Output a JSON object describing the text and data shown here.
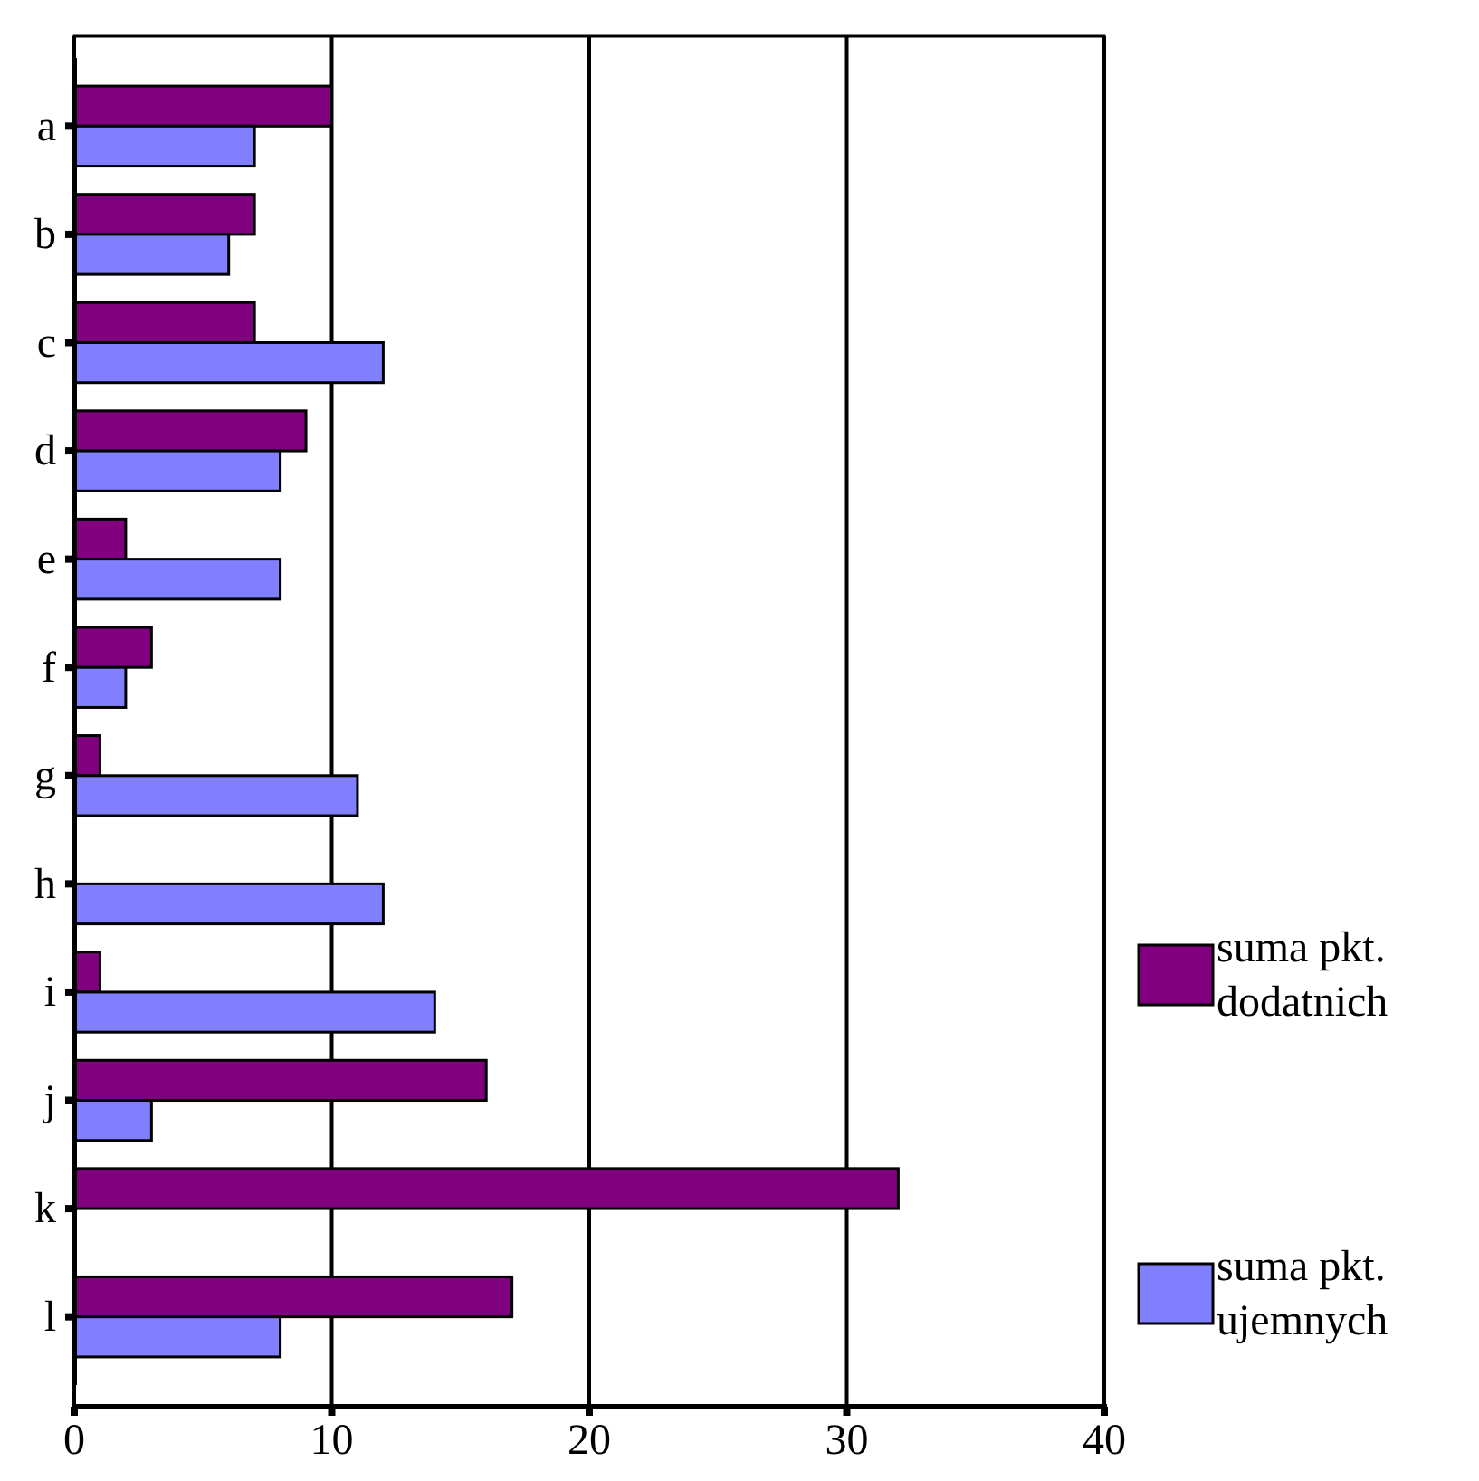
{
  "chart_data": {
    "type": "bar",
    "orientation": "horizontal",
    "categories": [
      "a",
      "b",
      "c",
      "d",
      "e",
      "f",
      "g",
      "h",
      "i",
      "j",
      "k",
      "l"
    ],
    "series": [
      {
        "name": "suma pkt. dodatnich",
        "color": "#800080",
        "values": [
          10,
          7,
          7,
          9,
          2,
          3,
          1,
          0,
          1,
          16,
          32,
          17
        ]
      },
      {
        "name": "suma pkt. ujemnych",
        "color": "#8080ff",
        "values": [
          7,
          6,
          12,
          8,
          8,
          2,
          11,
          12,
          14,
          3,
          0,
          8
        ]
      }
    ],
    "xlim": [
      0,
      40
    ],
    "xticks": [
      0,
      10,
      20,
      30,
      40
    ],
    "grid": "x",
    "legend": "right"
  }
}
